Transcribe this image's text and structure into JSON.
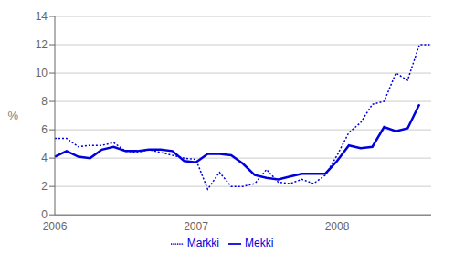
{
  "chart_data": {
    "type": "line",
    "ylabel": "%",
    "categories": [
      "2006",
      null,
      null,
      null,
      null,
      null,
      null,
      null,
      null,
      null,
      null,
      null,
      "2007",
      null,
      null,
      null,
      null,
      null,
      null,
      null,
      null,
      null,
      null,
      null,
      "2008",
      null,
      null,
      null,
      null,
      null,
      null,
      null,
      null
    ],
    "series": [
      {
        "name": "Mekki",
        "color": "#0000dd",
        "line_style": "solid",
        "values": [
          4.1,
          4.5,
          4.1,
          4.0,
          4.6,
          4.8,
          4.5,
          4.5,
          4.6,
          4.6,
          4.5,
          3.8,
          3.7,
          4.3,
          4.3,
          4.2,
          3.6,
          2.8,
          2.6,
          2.5,
          2.7,
          2.9,
          2.9,
          2.9,
          3.8,
          4.9,
          4.7,
          4.8,
          6.2,
          5.9,
          6.1,
          7.8,
          null
        ]
      },
      {
        "name": "Markki",
        "color": "#0000dd",
        "line_style": "dotted",
        "values": [
          5.4,
          5.4,
          4.8,
          4.9,
          4.9,
          5.1,
          4.5,
          4.4,
          4.6,
          4.4,
          4.2,
          4.0,
          3.9,
          1.8,
          3.0,
          2.0,
          2.0,
          2.2,
          3.2,
          2.3,
          2.2,
          2.5,
          2.2,
          2.8,
          4.2,
          5.8,
          6.5,
          7.8,
          8.0,
          10.0,
          9.5,
          12.0,
          12.0
        ]
      }
    ],
    "ylim": [
      0,
      14
    ],
    "yticks": [
      0,
      2,
      4,
      6,
      8,
      10,
      12,
      14
    ],
    "grid": true,
    "legend": "bottom"
  }
}
